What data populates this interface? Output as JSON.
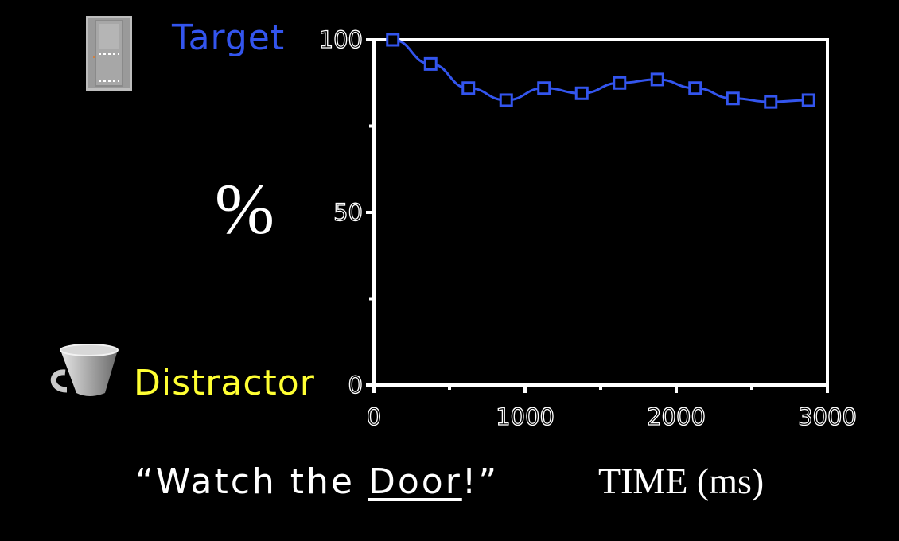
{
  "legend": {
    "target_label": "Target",
    "distractor_label": "Distractor"
  },
  "labels": {
    "percent": "%",
    "caption_prefix": "“Watch the ",
    "caption_word": "Door",
    "caption_suffix": "!”",
    "time": "TIME (ms)"
  },
  "icons": {
    "target": "door-icon",
    "distractor": "cup-icon"
  },
  "colors": {
    "background": "#000000",
    "target": "#3355ee",
    "distractor": "#ffff33",
    "axis": "#ffffff"
  },
  "chart_data": {
    "type": "line",
    "title": "",
    "xlabel": "TIME (ms)",
    "ylabel": "%",
    "xlim": [
      0,
      3000
    ],
    "ylim": [
      0,
      100
    ],
    "xticks": [
      0,
      1000,
      2000,
      3000
    ],
    "yticks": [
      0,
      50,
      100
    ],
    "xtick_labels": [
      "0",
      "1000",
      "2000",
      "3000"
    ],
    "ytick_labels": [
      "0",
      "50",
      "100"
    ],
    "grid": false,
    "series": [
      {
        "name": "Target",
        "color": "#3355ee",
        "marker": "square",
        "x": [
          125,
          375,
          625,
          875,
          1125,
          1375,
          1625,
          1875,
          2125,
          2375,
          2625,
          2875
        ],
        "y": [
          100,
          93,
          86,
          82.5,
          86,
          84.5,
          87.5,
          88.5,
          86,
          83,
          82,
          82.5
        ]
      }
    ]
  }
}
